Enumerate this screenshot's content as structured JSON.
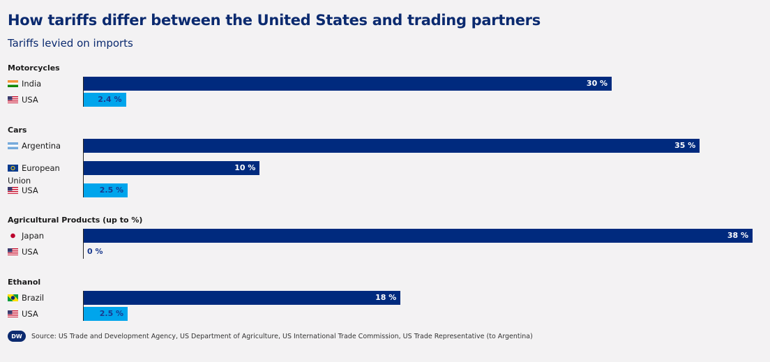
{
  "title": "How tariffs differ between the United States and trading partners",
  "subtitle": "Tariffs levied on imports",
  "source": "Source: US Trade and Development Agency, US Department of Agriculture, US International Trade Commission, US Trade Representative (to Argentina)",
  "logo": "DW",
  "colors": {
    "partner": "#002a7e",
    "usa": "#00a5ec",
    "usa_label": "#1a3a8f"
  },
  "chart_data": {
    "type": "bar",
    "orientation": "horizontal",
    "unit": "%",
    "xlim": [
      0,
      38
    ],
    "grid": false,
    "groups": [
      {
        "name": "Motorcycles",
        "rows": [
          {
            "country": "India",
            "flag": "india-flag-icon",
            "value": 30,
            "label": "30 %",
            "usa": false
          },
          {
            "country": "USA",
            "flag": "usa-flag-icon",
            "value": 2.4,
            "label": "2.4 %",
            "usa": true
          }
        ]
      },
      {
        "name": "Cars",
        "rows": [
          {
            "country": "Argentina",
            "flag": "argentina-flag-icon",
            "value": 35,
            "label": "35 %",
            "usa": false
          },
          {
            "country": "European Union",
            "flag": "eu-flag-icon",
            "value": 10,
            "label": "10 %",
            "usa": false
          },
          {
            "country": "USA",
            "flag": "usa-flag-icon",
            "value": 2.5,
            "label": "2.5 %",
            "usa": true
          }
        ]
      },
      {
        "name": "Agricultural Products (up to %)",
        "rows": [
          {
            "country": "Japan",
            "flag": "japan-flag-icon",
            "value": 38,
            "label": "38 %",
            "usa": false
          },
          {
            "country": "USA",
            "flag": "usa-flag-icon",
            "value": 0,
            "label": "0 %",
            "usa": true
          }
        ]
      },
      {
        "name": "Ethanol",
        "rows": [
          {
            "country": "Brazil",
            "flag": "brazil-flag-icon",
            "value": 18,
            "label": "18 %",
            "usa": false
          },
          {
            "country": "USA",
            "flag": "usa-flag-icon",
            "value": 2.5,
            "label": "2.5 %",
            "usa": true
          }
        ]
      }
    ]
  }
}
